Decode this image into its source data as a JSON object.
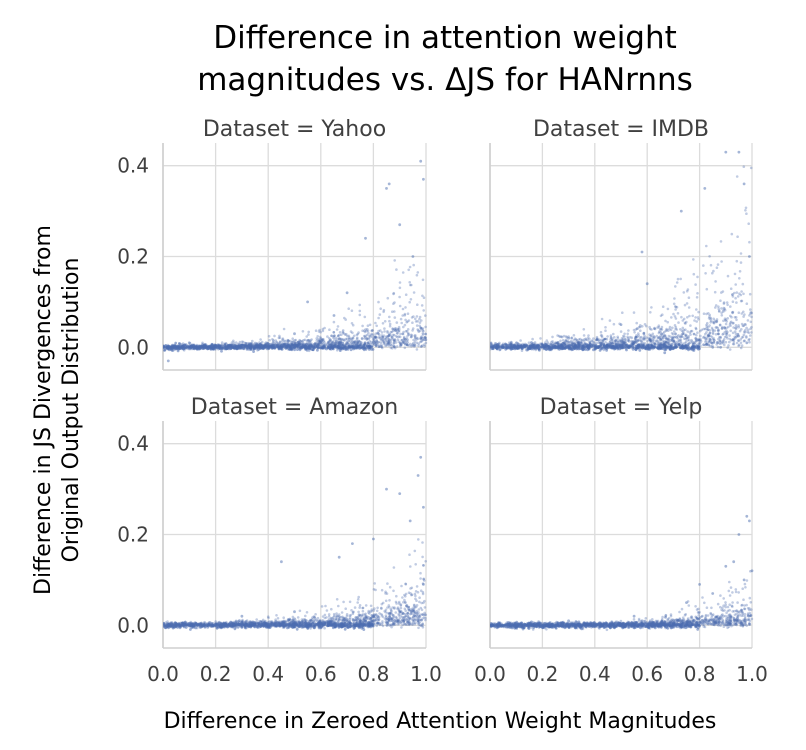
{
  "chart_data": {
    "type": "scatter",
    "title": [
      "Difference in attention weight",
      "magnitudes vs. ΔJS for HANrnns"
    ],
    "xlabel": "Difference in Zeroed Attention Weight Magnitudes",
    "ylabel": [
      "Difference in JS Divergences from",
      "Original Output Distribution"
    ],
    "xlim": [
      0.0,
      1.0
    ],
    "ylim": [
      -0.05,
      0.45
    ],
    "xticks": [
      "0.0",
      "0.2",
      "0.4",
      "0.6",
      "0.8",
      "1.0"
    ],
    "yticks": [
      "0.0",
      "0.2",
      "0.4"
    ],
    "xtick_values": [
      0.0,
      0.2,
      0.4,
      0.6,
      0.8,
      1.0
    ],
    "ytick_values": [
      0.0,
      0.2,
      0.4
    ],
    "grid": true,
    "point_color": "#4c6db0",
    "facets": [
      {
        "name": "Yahoo",
        "title": "Dataset = Yahoo",
        "trend": {
          "n_points": 1400,
          "growth": 4.2,
          "scale_at_1": 0.09,
          "max_y": 0.42
        },
        "sample_points": [
          [
            0.02,
            -0.03
          ],
          [
            0.1,
            0.01
          ],
          [
            0.3,
            0.005
          ],
          [
            0.5,
            0.03
          ],
          [
            0.55,
            0.1
          ],
          [
            0.65,
            0.07
          ],
          [
            0.7,
            0.12
          ],
          [
            0.77,
            0.24
          ],
          [
            0.86,
            0.36
          ],
          [
            0.9,
            0.27
          ],
          [
            0.95,
            0.2
          ],
          [
            0.99,
            0.37
          ],
          [
            0.98,
            0.41
          ],
          [
            0.85,
            0.35
          ]
        ]
      },
      {
        "name": "IMDB",
        "title": "Dataset = IMDB",
        "trend": {
          "n_points": 1400,
          "growth": 3.6,
          "scale_at_1": 0.13,
          "max_y": 0.45
        },
        "sample_points": [
          [
            0.05,
            0.0
          ],
          [
            0.3,
            0.02
          ],
          [
            0.5,
            0.05
          ],
          [
            0.58,
            0.21
          ],
          [
            0.73,
            0.3
          ],
          [
            0.6,
            0.14
          ],
          [
            0.82,
            0.35
          ],
          [
            0.9,
            0.43
          ],
          [
            0.95,
            0.43
          ],
          [
            0.97,
            0.36
          ],
          [
            0.85,
            0.0
          ],
          [
            0.88,
            0.0
          ],
          [
            0.98,
            0.01
          ],
          [
            0.99,
            0.2
          ]
        ]
      },
      {
        "name": "Amazon",
        "title": "Dataset = Amazon",
        "trend": {
          "n_points": 1400,
          "growth": 4.5,
          "scale_at_1": 0.07,
          "max_y": 0.41
        },
        "sample_points": [
          [
            0.05,
            0.0
          ],
          [
            0.3,
            0.02
          ],
          [
            0.45,
            0.14
          ],
          [
            0.5,
            0.03
          ],
          [
            0.67,
            0.15
          ],
          [
            0.72,
            0.18
          ],
          [
            0.8,
            0.19
          ],
          [
            0.85,
            0.3
          ],
          [
            0.9,
            0.29
          ],
          [
            0.94,
            0.23
          ],
          [
            0.98,
            0.37
          ],
          [
            0.97,
            0.33
          ],
          [
            0.99,
            0.26
          ],
          [
            0.99,
            0.09
          ]
        ]
      },
      {
        "name": "Yelp",
        "title": "Dataset = Yelp",
        "trend": {
          "n_points": 1400,
          "growth": 5.5,
          "scale_at_1": 0.05,
          "max_y": 0.25
        },
        "sample_points": [
          [
            0.05,
            0.0
          ],
          [
            0.3,
            0.01
          ],
          [
            0.55,
            0.02
          ],
          [
            0.75,
            0.05
          ],
          [
            0.8,
            0.09
          ],
          [
            0.85,
            0.07
          ],
          [
            0.9,
            0.13
          ],
          [
            0.93,
            0.14
          ],
          [
            0.95,
            0.2
          ],
          [
            0.98,
            0.24
          ],
          [
            0.99,
            0.23
          ],
          [
            0.97,
            0.1
          ],
          [
            1.0,
            0.12
          ]
        ]
      }
    ]
  }
}
